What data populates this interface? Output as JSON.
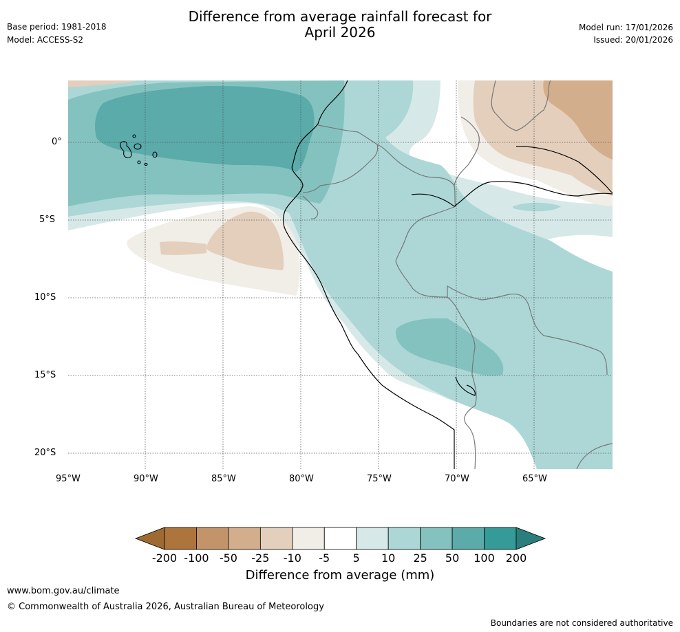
{
  "header": {
    "title_line1": "Difference from average rainfall forecast for",
    "title_line2": "April 2026",
    "base_period": "Base period: 1981-2018",
    "model": "Model: ACCESS-S2",
    "model_run": "Model run: 17/01/2026",
    "issued": "Issued: 20/01/2026"
  },
  "map": {
    "lat_labels": [
      "0°",
      "5°S",
      "10°S",
      "15°S",
      "20°S"
    ],
    "lon_labels": [
      "95°W",
      "90°W",
      "85°W",
      "80°W",
      "75°W",
      "70°W",
      "65°W"
    ],
    "lat_values": [
      0,
      -5,
      -10,
      -15,
      -20
    ],
    "lon_values": [
      -95,
      -90,
      -85,
      -80,
      -75,
      -70,
      -65
    ],
    "lon_range": [
      -95,
      -60
    ],
    "lat_range": [
      -21,
      4
    ]
  },
  "colorbar": {
    "title": "Difference from average (mm)",
    "labels": [
      "-200",
      "-100",
      "-50",
      "-25",
      "-10",
      "-5",
      "5",
      "10",
      "25",
      "50",
      "100",
      "200"
    ],
    "colors": [
      "#9f6a31",
      "#ad743c",
      "#c39369",
      "#d3ae8c",
      "#e3cfbc",
      "#f1ede7",
      "#ffffff",
      "#d6e9e8",
      "#acd7d6",
      "#84c2c0",
      "#5aabaa",
      "#349b98",
      "#2a7e7b"
    ]
  },
  "footer": {
    "website": "www.bom.gov.au/climate",
    "copyright": "© Commonwealth of Australia 2026, Australian Bureau of Meteorology",
    "disclaimer": "Boundaries are not considered authoritative"
  }
}
